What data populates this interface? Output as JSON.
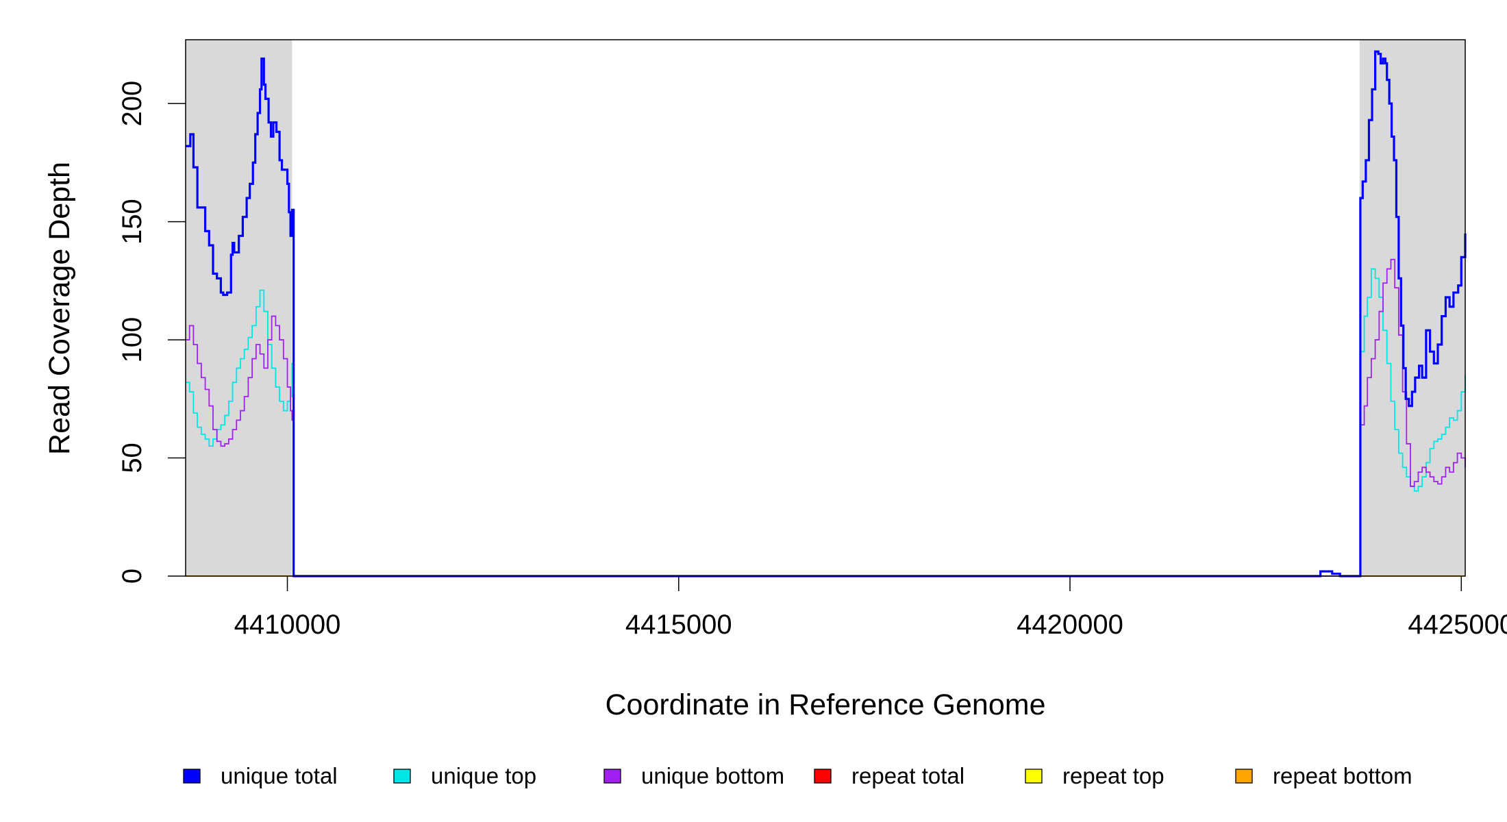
{
  "chart_data": {
    "type": "line",
    "xlabel": "Coordinate in Reference Genome",
    "ylabel": "Read Coverage Depth",
    "xlim": [
      4408700,
      4425050
    ],
    "ylim": [
      0,
      227
    ],
    "x_ticks": [
      4410000,
      4415000,
      4420000,
      4425000
    ],
    "x_tick_labels": [
      "4410000",
      "4415000",
      "4420000",
      "4425000"
    ],
    "y_ticks": [
      0,
      50,
      100,
      150,
      200
    ],
    "y_tick_labels": [
      "0",
      "50",
      "100",
      "150",
      "200"
    ],
    "shaded_regions": [
      [
        4408700,
        4410060
      ],
      [
        4423700,
        4425050
      ]
    ],
    "grid": false,
    "legend_position": "bottom",
    "series": [
      {
        "name": "unique total",
        "color": "#0000ff",
        "points": [
          [
            4408700,
            182
          ],
          [
            4408760,
            187
          ],
          [
            4408800,
            173
          ],
          [
            4408850,
            156
          ],
          [
            4408950,
            146
          ],
          [
            4409000,
            140
          ],
          [
            4409050,
            128
          ],
          [
            4409100,
            126
          ],
          [
            4409150,
            120
          ],
          [
            4409180,
            119
          ],
          [
            4409230,
            120
          ],
          [
            4409280,
            136
          ],
          [
            4409300,
            141
          ],
          [
            4409320,
            137
          ],
          [
            4409380,
            144
          ],
          [
            4409430,
            152
          ],
          [
            4409480,
            160
          ],
          [
            4409520,
            166
          ],
          [
            4409560,
            175
          ],
          [
            4409590,
            187
          ],
          [
            4409620,
            196
          ],
          [
            4409650,
            206
          ],
          [
            4409670,
            219
          ],
          [
            4409700,
            208
          ],
          [
            4409720,
            202
          ],
          [
            4409760,
            192
          ],
          [
            4409790,
            186
          ],
          [
            4409820,
            192
          ],
          [
            4409860,
            188
          ],
          [
            4409900,
            176
          ],
          [
            4409930,
            172
          ],
          [
            4409970,
            172
          ],
          [
            4410000,
            166
          ],
          [
            4410020,
            154
          ],
          [
            4410040,
            144
          ],
          [
            4410060,
            155
          ],
          [
            4410080,
            0
          ],
          [
            4413000,
            0
          ],
          [
            4423000,
            0
          ],
          [
            4423150,
            0
          ],
          [
            4423200,
            2
          ],
          [
            4423350,
            1
          ],
          [
            4423450,
            0
          ],
          [
            4423690,
            0
          ],
          [
            4423710,
            160
          ],
          [
            4423740,
            167
          ],
          [
            4423780,
            176
          ],
          [
            4423820,
            193
          ],
          [
            4423860,
            206
          ],
          [
            4423900,
            222
          ],
          [
            4423940,
            221
          ],
          [
            4423970,
            217
          ],
          [
            4424000,
            219
          ],
          [
            4424030,
            217
          ],
          [
            4424050,
            210
          ],
          [
            4424080,
            200
          ],
          [
            4424110,
            186
          ],
          [
            4424140,
            176
          ],
          [
            4424170,
            152
          ],
          [
            4424200,
            126
          ],
          [
            4424230,
            106
          ],
          [
            4424260,
            88
          ],
          [
            4424290,
            75
          ],
          [
            4424330,
            72
          ],
          [
            4424370,
            78
          ],
          [
            4424410,
            84
          ],
          [
            4424460,
            89
          ],
          [
            4424500,
            84
          ],
          [
            4424550,
            104
          ],
          [
            4424600,
            95
          ],
          [
            4424650,
            90
          ],
          [
            4424700,
            98
          ],
          [
            4424750,
            110
          ],
          [
            4424800,
            118
          ],
          [
            4424850,
            114
          ],
          [
            4424900,
            120
          ],
          [
            4424960,
            123
          ],
          [
            4425000,
            135
          ],
          [
            4425050,
            145
          ]
        ]
      },
      {
        "name": "unique top",
        "color": "#00e5e5",
        "points": [
          [
            4408700,
            82
          ],
          [
            4408750,
            78
          ],
          [
            4408800,
            69
          ],
          [
            4408850,
            63
          ],
          [
            4408900,
            60
          ],
          [
            4408950,
            58
          ],
          [
            4409000,
            55
          ],
          [
            4409050,
            58
          ],
          [
            4409100,
            62
          ],
          [
            4409150,
            64
          ],
          [
            4409200,
            68
          ],
          [
            4409250,
            74
          ],
          [
            4409300,
            82
          ],
          [
            4409350,
            88
          ],
          [
            4409400,
            92
          ],
          [
            4409450,
            96
          ],
          [
            4409500,
            101
          ],
          [
            4409550,
            106
          ],
          [
            4409600,
            114
          ],
          [
            4409650,
            121
          ],
          [
            4409700,
            112
          ],
          [
            4409750,
            98
          ],
          [
            4409800,
            88
          ],
          [
            4409850,
            80
          ],
          [
            4409900,
            74
          ],
          [
            4409950,
            70
          ],
          [
            4410000,
            74
          ],
          [
            4410040,
            76
          ],
          [
            4410060,
            90
          ],
          [
            4410080,
            0
          ],
          [
            4423690,
            0
          ],
          [
            4423710,
            95
          ],
          [
            4423760,
            110
          ],
          [
            4423800,
            118
          ],
          [
            4423850,
            130
          ],
          [
            4423900,
            126
          ],
          [
            4423950,
            118
          ],
          [
            4424000,
            104
          ],
          [
            4424050,
            90
          ],
          [
            4424100,
            74
          ],
          [
            4424150,
            62
          ],
          [
            4424200,
            52
          ],
          [
            4424250,
            46
          ],
          [
            4424300,
            42
          ],
          [
            4424350,
            38
          ],
          [
            4424400,
            36
          ],
          [
            4424450,
            38
          ],
          [
            4424500,
            42
          ],
          [
            4424550,
            48
          ],
          [
            4424600,
            54
          ],
          [
            4424650,
            57
          ],
          [
            4424700,
            58
          ],
          [
            4424750,
            60
          ],
          [
            4424800,
            63
          ],
          [
            4424850,
            67
          ],
          [
            4424900,
            66
          ],
          [
            4424950,
            70
          ],
          [
            4425000,
            78
          ],
          [
            4425050,
            85
          ]
        ]
      },
      {
        "name": "unique bottom",
        "color": "#a020f0",
        "points": [
          [
            4408700,
            100
          ],
          [
            4408750,
            106
          ],
          [
            4408800,
            98
          ],
          [
            4408850,
            90
          ],
          [
            4408900,
            84
          ],
          [
            4408950,
            79
          ],
          [
            4409000,
            72
          ],
          [
            4409050,
            62
          ],
          [
            4409100,
            57
          ],
          [
            4409150,
            55
          ],
          [
            4409200,
            56
          ],
          [
            4409250,
            58
          ],
          [
            4409300,
            62
          ],
          [
            4409350,
            66
          ],
          [
            4409400,
            70
          ],
          [
            4409450,
            76
          ],
          [
            4409500,
            84
          ],
          [
            4409550,
            92
          ],
          [
            4409600,
            98
          ],
          [
            4409650,
            94
          ],
          [
            4409700,
            88
          ],
          [
            4409750,
            100
          ],
          [
            4409800,
            110
          ],
          [
            4409850,
            106
          ],
          [
            4409900,
            100
          ],
          [
            4409950,
            92
          ],
          [
            4410000,
            80
          ],
          [
            4410040,
            70
          ],
          [
            4410060,
            66
          ],
          [
            4410080,
            0
          ],
          [
            4423690,
            0
          ],
          [
            4423710,
            64
          ],
          [
            4423760,
            72
          ],
          [
            4423800,
            84
          ],
          [
            4423850,
            92
          ],
          [
            4423900,
            100
          ],
          [
            4423950,
            112
          ],
          [
            4424000,
            124
          ],
          [
            4424050,
            130
          ],
          [
            4424100,
            134
          ],
          [
            4424150,
            122
          ],
          [
            4424200,
            102
          ],
          [
            4424250,
            78
          ],
          [
            4424300,
            56
          ],
          [
            4424350,
            38
          ],
          [
            4424400,
            40
          ],
          [
            4424450,
            44
          ],
          [
            4424500,
            46
          ],
          [
            4424550,
            44
          ],
          [
            4424600,
            42
          ],
          [
            4424650,
            40
          ],
          [
            4424700,
            39
          ],
          [
            4424750,
            42
          ],
          [
            4424800,
            46
          ],
          [
            4424850,
            44
          ],
          [
            4424900,
            48
          ],
          [
            4424950,
            52
          ],
          [
            4425000,
            50
          ],
          [
            4425050,
            46
          ]
        ]
      },
      {
        "name": "repeat total",
        "color": "#ff0000",
        "points": [
          [
            4408700,
            0
          ],
          [
            4425050,
            0
          ]
        ]
      },
      {
        "name": "repeat top",
        "color": "#ffff00",
        "points": [
          [
            4408700,
            0
          ],
          [
            4425050,
            0
          ]
        ]
      },
      {
        "name": "repeat bottom",
        "color": "#ffa500",
        "points": [
          [
            4408700,
            0
          ],
          [
            4425050,
            0
          ]
        ]
      }
    ]
  }
}
